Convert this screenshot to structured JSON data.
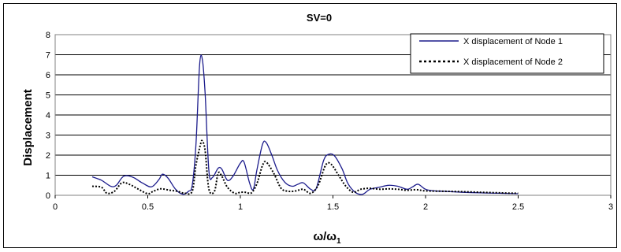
{
  "chart_data": {
    "type": "line",
    "title": "SV=0",
    "xlabel": "ω/ω",
    "xlabel_sub": "1",
    "ylabel": "Displacement",
    "xlim": [
      0,
      3
    ],
    "ylim": [
      0,
      8
    ],
    "xticks": [
      "0",
      "0.5",
      "1",
      "1.5",
      "2",
      "2.5",
      "3"
    ],
    "yticks": [
      "0",
      "1",
      "2",
      "3",
      "4",
      "5",
      "6",
      "7",
      "8"
    ],
    "grid": "horizontal",
    "legend_position": "top-right",
    "series": [
      {
        "name": "X displacement of Node 1",
        "color": "#1c1c8c",
        "style": "solid",
        "points": [
          [
            0.2,
            0.92
          ],
          [
            0.25,
            0.75
          ],
          [
            0.3,
            0.45
          ],
          [
            0.33,
            0.5
          ],
          [
            0.37,
            0.95
          ],
          [
            0.42,
            0.9
          ],
          [
            0.47,
            0.62
          ],
          [
            0.52,
            0.42
          ],
          [
            0.56,
            0.78
          ],
          [
            0.58,
            1.05
          ],
          [
            0.61,
            0.85
          ],
          [
            0.65,
            0.3
          ],
          [
            0.69,
            0.05
          ],
          [
            0.72,
            0.2
          ],
          [
            0.74,
            0.5
          ],
          [
            0.76,
            2.5
          ],
          [
            0.78,
            6.5
          ],
          [
            0.795,
            6.75
          ],
          [
            0.81,
            5.0
          ],
          [
            0.83,
            1.2
          ],
          [
            0.85,
            0.9
          ],
          [
            0.88,
            1.35
          ],
          [
            0.9,
            1.3
          ],
          [
            0.93,
            0.75
          ],
          [
            0.96,
            0.95
          ],
          [
            1.0,
            1.6
          ],
          [
            1.02,
            1.65
          ],
          [
            1.05,
            0.6
          ],
          [
            1.07,
            0.3
          ],
          [
            1.09,
            1.3
          ],
          [
            1.12,
            2.55
          ],
          [
            1.14,
            2.62
          ],
          [
            1.17,
            2.0
          ],
          [
            1.2,
            1.25
          ],
          [
            1.24,
            0.65
          ],
          [
            1.28,
            0.45
          ],
          [
            1.31,
            0.55
          ],
          [
            1.34,
            0.62
          ],
          [
            1.38,
            0.3
          ],
          [
            1.41,
            0.35
          ],
          [
            1.45,
            1.75
          ],
          [
            1.48,
            2.05
          ],
          [
            1.51,
            1.95
          ],
          [
            1.55,
            1.3
          ],
          [
            1.58,
            0.6
          ],
          [
            1.62,
            0.15
          ],
          [
            1.66,
            0.05
          ],
          [
            1.7,
            0.3
          ],
          [
            1.75,
            0.4
          ],
          [
            1.8,
            0.5
          ],
          [
            1.85,
            0.45
          ],
          [
            1.9,
            0.3
          ],
          [
            1.93,
            0.42
          ],
          [
            1.96,
            0.55
          ],
          [
            2.0,
            0.3
          ],
          [
            2.05,
            0.22
          ],
          [
            2.1,
            0.2
          ],
          [
            2.2,
            0.15
          ],
          [
            2.3,
            0.12
          ],
          [
            2.4,
            0.1
          ],
          [
            2.5,
            0.08
          ]
        ]
      },
      {
        "name": "X displacement of Node 2",
        "color": "#000000",
        "style": "dotted",
        "points": [
          [
            0.2,
            0.45
          ],
          [
            0.25,
            0.4
          ],
          [
            0.28,
            0.1
          ],
          [
            0.32,
            0.2
          ],
          [
            0.36,
            0.62
          ],
          [
            0.4,
            0.55
          ],
          [
            0.45,
            0.3
          ],
          [
            0.5,
            0.08
          ],
          [
            0.53,
            0.2
          ],
          [
            0.57,
            0.32
          ],
          [
            0.62,
            0.25
          ],
          [
            0.66,
            0.2
          ],
          [
            0.7,
            0.1
          ],
          [
            0.74,
            0.2
          ],
          [
            0.76,
            1.5
          ],
          [
            0.785,
            2.55
          ],
          [
            0.795,
            2.7
          ],
          [
            0.81,
            2.2
          ],
          [
            0.83,
            0.3
          ],
          [
            0.86,
            0.2
          ],
          [
            0.88,
            1.1
          ],
          [
            0.9,
            0.95
          ],
          [
            0.93,
            0.4
          ],
          [
            0.97,
            0.1
          ],
          [
            1.0,
            0.15
          ],
          [
            1.03,
            0.15
          ],
          [
            1.06,
            0.12
          ],
          [
            1.09,
            0.6
          ],
          [
            1.12,
            1.5
          ],
          [
            1.14,
            1.65
          ],
          [
            1.18,
            1.1
          ],
          [
            1.22,
            0.35
          ],
          [
            1.26,
            0.2
          ],
          [
            1.3,
            0.22
          ],
          [
            1.34,
            0.3
          ],
          [
            1.38,
            0.1
          ],
          [
            1.42,
            0.5
          ],
          [
            1.46,
            1.5
          ],
          [
            1.49,
            1.55
          ],
          [
            1.53,
            1.0
          ],
          [
            1.57,
            0.45
          ],
          [
            1.61,
            0.15
          ],
          [
            1.65,
            0.3
          ],
          [
            1.7,
            0.35
          ],
          [
            1.75,
            0.3
          ],
          [
            1.8,
            0.32
          ],
          [
            1.85,
            0.3
          ],
          [
            1.9,
            0.25
          ],
          [
            1.95,
            0.28
          ],
          [
            2.0,
            0.22
          ],
          [
            2.1,
            0.2
          ],
          [
            2.2,
            0.18
          ],
          [
            2.3,
            0.15
          ],
          [
            2.4,
            0.12
          ],
          [
            2.5,
            0.1
          ]
        ]
      }
    ]
  }
}
